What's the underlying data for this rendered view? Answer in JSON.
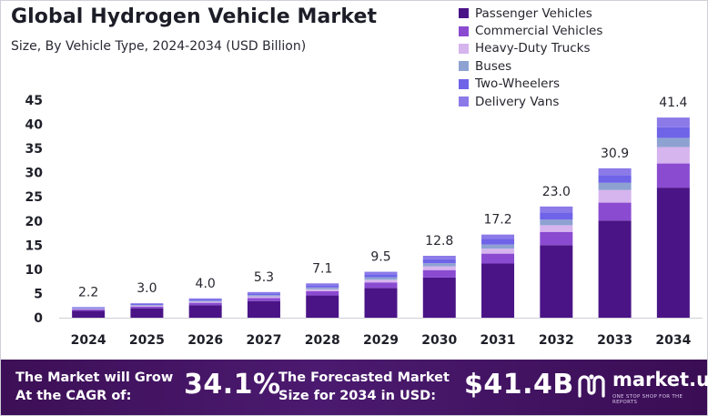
{
  "chart_data": {
    "type": "bar",
    "stacked": true,
    "title": "Global Hydrogen Vehicle Market",
    "subtitle": "Size, By Vehicle Type, 2024-2034 (USD Billion)",
    "categories": [
      "2024",
      "2025",
      "2026",
      "2027",
      "2028",
      "2029",
      "2030",
      "2031",
      "2032",
      "2033",
      "2034"
    ],
    "totals": [
      2.2,
      3.0,
      4.0,
      5.3,
      7.1,
      9.5,
      12.8,
      17.2,
      23.0,
      30.9,
      41.4
    ],
    "total_labels": [
      "2.2",
      "3.0",
      "4.0",
      "5.3",
      "7.1",
      "9.5",
      "12.8",
      "17.2",
      "23.0",
      "30.9",
      "41.4"
    ],
    "series": [
      {
        "name": "Passenger Vehicles",
        "color": "#4a1487",
        "values": [
          1.43,
          1.95,
          2.6,
          3.45,
          4.6,
          6.15,
          8.3,
          11.2,
          15.0,
          20.1,
          26.9
        ]
      },
      {
        "name": "Commercial Vehicles",
        "color": "#8a4bd1",
        "values": [
          0.26,
          0.36,
          0.48,
          0.64,
          0.86,
          1.15,
          1.55,
          2.05,
          2.75,
          3.7,
          5.0
        ]
      },
      {
        "name": "Heavy-Duty Trucks",
        "color": "#d6b4ee",
        "values": [
          0.13,
          0.18,
          0.24,
          0.32,
          0.43,
          0.57,
          0.77,
          1.03,
          1.38,
          2.6,
          3.4
        ]
      },
      {
        "name": "Buses",
        "color": "#8ea2d2",
        "values": [
          0.11,
          0.15,
          0.2,
          0.27,
          0.36,
          0.48,
          0.64,
          0.86,
          1.15,
          1.5,
          1.9
        ]
      },
      {
        "name": "Two-Wheelers",
        "color": "#6f63e8",
        "values": [
          0.15,
          0.2,
          0.27,
          0.35,
          0.47,
          0.63,
          0.85,
          1.14,
          1.52,
          1.6,
          2.2
        ]
      },
      {
        "name": "Delivery Vans",
        "color": "#8b7ae8",
        "values": [
          0.12,
          0.16,
          0.21,
          0.27,
          0.38,
          0.52,
          0.69,
          0.92,
          1.2,
          1.4,
          2.0
        ]
      }
    ],
    "y_ticks": [
      0,
      5,
      10,
      15,
      20,
      25,
      30,
      35,
      40,
      45
    ],
    "ylim": [
      0,
      45
    ],
    "legend_position": "top-right",
    "grid": false
  },
  "footer": {
    "cagr_label_line1": "The Market will Grow",
    "cagr_label_line2": "At the CAGR of:",
    "cagr_value": "34.1%",
    "forecast_label_line1": "The Forecasted Market",
    "forecast_label_line2": "Size for 2034 in USD:",
    "forecast_value": "$41.4B",
    "brand": "market.us",
    "brand_tagline": "ONE STOP SHOP FOR THE REPORTS"
  },
  "colors": {
    "footer_bg": "#3d0f56",
    "accent": "#4a1487"
  }
}
